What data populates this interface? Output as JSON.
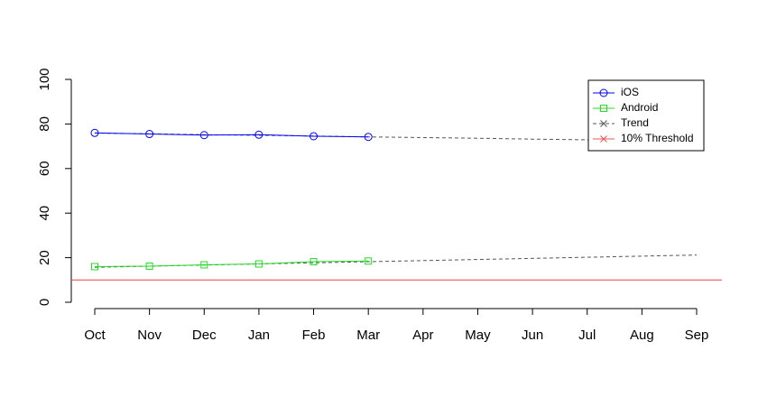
{
  "chart_data": {
    "type": "line",
    "categories": [
      "Oct",
      "Nov",
      "Dec",
      "Jan",
      "Feb",
      "Mar",
      "Apr",
      "May",
      "Jun",
      "Jul",
      "Aug",
      "Sep"
    ],
    "series": [
      {
        "name": "iOS",
        "color": "#0000ff",
        "marker": "circle",
        "values": [
          76.0,
          75.5,
          75.0,
          75.2,
          74.5,
          74.2,
          null,
          null,
          null,
          null,
          null,
          null
        ]
      },
      {
        "name": "Android",
        "color": "#22dd22",
        "marker": "square",
        "values": [
          16.0,
          16.2,
          16.8,
          17.2,
          18.2,
          18.5,
          null,
          null,
          null,
          null,
          null,
          null
        ]
      }
    ],
    "trend": {
      "name": "Trend",
      "color": "#555555",
      "lines": [
        [
          75.9,
          75.6,
          75.2,
          74.9,
          74.6,
          74.2,
          73.9,
          73.6,
          73.2,
          72.9,
          72.5,
          72.2
        ],
        [
          15.7,
          16.2,
          16.7,
          17.2,
          17.7,
          18.2,
          18.7,
          19.2,
          19.7,
          20.2,
          20.7,
          21.2
        ]
      ]
    },
    "threshold": {
      "name": "10% Threshold",
      "color": "#ee5555",
      "value": 10
    },
    "ylim": [
      0,
      100
    ],
    "yticks": [
      0,
      20,
      40,
      60,
      80,
      100
    ],
    "legend": "top-right"
  }
}
